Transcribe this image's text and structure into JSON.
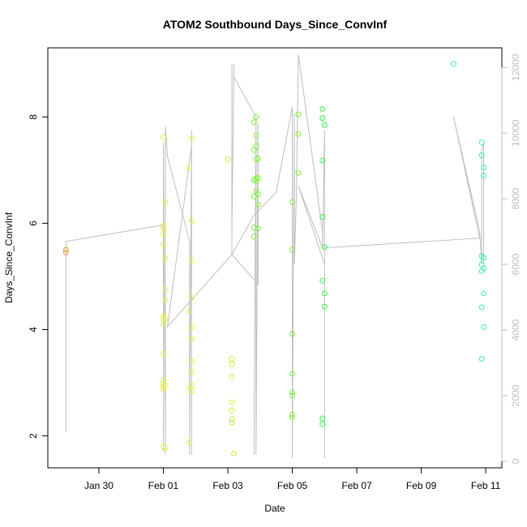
{
  "chart_data": {
    "type": "scatter",
    "title": "ATOM2 Southbound Days_Since_ConvInf",
    "xlabel": "Date",
    "ylabel": "Days_Since_ConvInf",
    "x_ticks": [
      "Jan 30",
      "Feb 01",
      "Feb 03",
      "Feb 05",
      "Feb 07",
      "Feb 09",
      "Feb 11"
    ],
    "y_ticks": [
      2,
      4,
      6,
      8
    ],
    "y_right_ticks": [
      0,
      2000,
      4000,
      6000,
      8000,
      10000,
      12000
    ],
    "xlim": [
      "2025-01-28 10:00",
      "2025-02-11 12:00"
    ],
    "ylim": [
      1.4,
      9.3
    ],
    "ylim_right": [
      -200,
      12600
    ],
    "grid": false,
    "colors": {
      "point_orange": "#e8a23c",
      "point_yellow": "#e2f23c",
      "point_yellowgreen": "#c2f23a",
      "point_green": "#7cf03a",
      "point_brightgreen": "#3ef044",
      "point_teal": "#3cf0a8",
      "line": "#bebebe",
      "right_axis": "#bebebe"
    },
    "series": [
      {
        "color_key": "point_orange",
        "points": [
          [
            "2025-01-28 23:30",
            5.45
          ],
          [
            "2025-01-28 23:30",
            5.5
          ]
        ]
      },
      {
        "color_key": "point_yellow",
        "points": [
          [
            "2025-02-01 00:00",
            7.62
          ],
          [
            "2025-02-01 00:00",
            5.95
          ],
          [
            "2025-02-01 00:00",
            5.9
          ],
          [
            "2025-02-01 00:00",
            5.8
          ],
          [
            "2025-02-01 00:00",
            5.6
          ],
          [
            "2025-02-01 00:00",
            4.25
          ],
          [
            "2025-02-01 00:00",
            4.2
          ],
          [
            "2025-02-01 00:00",
            4.1
          ],
          [
            "2025-02-01 00:00",
            3.55
          ],
          [
            "2025-02-01 00:00",
            3.05
          ],
          [
            "2025-02-01 00:00",
            2.98
          ],
          [
            "2025-02-01 00:00",
            2.92
          ],
          [
            "2025-02-01 00:00",
            2.88
          ],
          [
            "2025-02-01 00:00",
            1.8
          ],
          [
            "2025-02-01 01:30",
            6.4
          ],
          [
            "2025-02-01 01:30",
            5.35
          ],
          [
            "2025-02-01 01:30",
            4.75
          ],
          [
            "2025-02-01 01:30",
            4.55
          ],
          [
            "2025-02-01 01:30",
            4.2
          ],
          [
            "2025-02-01 01:30",
            2.95
          ],
          [
            "2025-02-01 01:30",
            1.78
          ],
          [
            "2025-02-01 19:30",
            7.05
          ],
          [
            "2025-02-01 19:30",
            4.35
          ],
          [
            "2025-02-01 19:30",
            2.9
          ],
          [
            "2025-02-01 19:30",
            1.88
          ],
          [
            "2025-02-01 21:00",
            7.6
          ],
          [
            "2025-02-01 21:00",
            6.05
          ],
          [
            "2025-02-01 21:00",
            5.3
          ],
          [
            "2025-02-01 21:00",
            4.6
          ],
          [
            "2025-02-01 21:00",
            4.05
          ],
          [
            "2025-02-01 21:00",
            3.82
          ],
          [
            "2025-02-01 21:00",
            3.4
          ],
          [
            "2025-02-01 21:00",
            3.2
          ],
          [
            "2025-02-01 21:00",
            2.95
          ],
          [
            "2025-02-01 21:00",
            2.85
          ]
        ]
      },
      {
        "color_key": "point_yellowgreen",
        "points": [
          [
            "2025-02-03 00:00",
            7.2
          ],
          [
            "2025-02-03 03:00",
            3.45
          ],
          [
            "2025-02-03 03:00",
            3.35
          ],
          [
            "2025-02-03 03:00",
            3.12
          ],
          [
            "2025-02-03 03:00",
            2.63
          ],
          [
            "2025-02-03 03:00",
            2.48
          ],
          [
            "2025-02-03 03:00",
            2.32
          ],
          [
            "2025-02-03 03:00",
            2.25
          ],
          [
            "2025-02-03 03:00",
            2.25
          ],
          [
            "2025-02-03 04:30",
            1.67
          ]
        ]
      },
      {
        "color_key": "point_green",
        "points": [
          [
            "2025-02-03 19:30",
            7.9
          ],
          [
            "2025-02-03 19:30",
            7.38
          ],
          [
            "2025-02-03 19:30",
            6.82
          ],
          [
            "2025-02-03 19:30",
            6.5
          ],
          [
            "2025-02-03 19:30",
            5.92
          ],
          [
            "2025-02-03 19:30",
            5.75
          ],
          [
            "2025-02-03 21:00",
            8.0
          ],
          [
            "2025-02-03 21:00",
            7.65
          ],
          [
            "2025-02-03 21:00",
            7.45
          ],
          [
            "2025-02-03 21:00",
            7.2
          ],
          [
            "2025-02-03 21:00",
            6.85
          ],
          [
            "2025-02-03 21:00",
            6.8
          ],
          [
            "2025-02-03 21:00",
            6.6
          ],
          [
            "2025-02-03 22:30",
            7.22
          ],
          [
            "2025-02-03 22:30",
            6.85
          ],
          [
            "2025-02-03 22:30",
            6.55
          ],
          [
            "2025-02-03 22:30",
            6.35
          ],
          [
            "2025-02-03 22:30",
            5.9
          ],
          [
            "2025-02-05 00:00",
            6.4
          ],
          [
            "2025-02-05 00:00",
            5.5
          ],
          [
            "2025-02-05 00:00",
            3.92
          ],
          [
            "2025-02-05 00:00",
            3.17
          ],
          [
            "2025-02-05 00:00",
            2.82
          ],
          [
            "2025-02-05 00:00",
            2.76
          ],
          [
            "2025-02-05 00:00",
            2.4
          ],
          [
            "2025-02-05 00:00",
            2.35
          ],
          [
            "2025-02-05 04:30",
            8.05
          ],
          [
            "2025-02-05 04:30",
            7.68
          ],
          [
            "2025-02-05 04:30",
            6.95
          ]
        ]
      },
      {
        "color_key": "point_brightgreen",
        "points": [
          [
            "2025-02-05 22:30",
            8.15
          ],
          [
            "2025-02-05 22:30",
            7.98
          ],
          [
            "2025-02-05 22:30",
            7.18
          ],
          [
            "2025-02-05 22:30",
            6.12
          ],
          [
            "2025-02-05 22:30",
            4.92
          ],
          [
            "2025-02-05 22:30",
            2.33
          ],
          [
            "2025-02-05 22:30",
            2.22
          ],
          [
            "2025-02-06 00:00",
            7.85
          ],
          [
            "2025-02-06 00:00",
            5.55
          ],
          [
            "2025-02-06 00:00",
            4.68
          ],
          [
            "2025-02-06 00:00",
            4.43
          ]
        ]
      },
      {
        "color_key": "point_teal",
        "points": [
          [
            "2025-02-10 00:00",
            9.0
          ],
          [
            "2025-02-10 21:00",
            7.52
          ],
          [
            "2025-02-10 21:00",
            7.28
          ],
          [
            "2025-02-10 21:00",
            5.38
          ],
          [
            "2025-02-10 21:00",
            5.22
          ],
          [
            "2025-02-10 21:00",
            5.1
          ],
          [
            "2025-02-10 21:00",
            4.42
          ],
          [
            "2025-02-10 21:00",
            3.45
          ],
          [
            "2025-02-10 22:30",
            7.05
          ],
          [
            "2025-02-10 22:30",
            6.9
          ],
          [
            "2025-02-10 22:30",
            5.35
          ],
          [
            "2025-02-10 22:30",
            5.15
          ],
          [
            "2025-02-10 22:30",
            4.68
          ],
          [
            "2025-02-10 22:30",
            4.05
          ]
        ]
      }
    ],
    "line_series": {
      "axis": "right",
      "points": [
        [
          "2025-01-28 23:30",
          900
        ],
        [
          "2025-01-28 23:30",
          6700
        ],
        [
          "2025-02-01 00:00",
          7200
        ],
        [
          "2025-02-01 00:00",
          300
        ],
        [
          "2025-02-01 00:00",
          9700
        ],
        [
          "2025-02-01 01:30",
          200
        ],
        [
          "2025-02-01 01:30",
          10200
        ],
        [
          "2025-02-01 03:00",
          9300
        ],
        [
          "2025-02-01 19:30",
          6700
        ],
        [
          "2025-02-01 19:30",
          200
        ],
        [
          "2025-02-01 21:00",
          10100
        ],
        [
          "2025-02-01 21:00",
          200
        ],
        [
          "2025-02-01 21:00",
          9600
        ],
        [
          "2025-02-01 03:00",
          4100
        ],
        [
          "2025-02-03 03:00",
          6300
        ],
        [
          "2025-02-03 03:00",
          12100
        ],
        [
          "2025-02-03 03:00",
          7000
        ],
        [
          "2025-02-03 04:30",
          12100
        ],
        [
          "2025-02-03 04:30",
          11700
        ],
        [
          "2025-02-03 21:00",
          10500
        ],
        [
          "2025-02-03 19:30",
          200
        ],
        [
          "2025-02-03 21:00",
          10400
        ],
        [
          "2025-02-03 21:00",
          200
        ],
        [
          "2025-02-03 22:30",
          10300
        ],
        [
          "2025-02-03 22:30",
          5400
        ],
        [
          "2025-02-03 03:00",
          6300
        ],
        [
          "2025-02-03 19:30",
          7500
        ],
        [
          "2025-02-04 12:00",
          8200
        ],
        [
          "2025-02-05 00:00",
          10800
        ],
        [
          "2025-02-05 00:00",
          100
        ],
        [
          "2025-02-05 01:30",
          10600
        ],
        [
          "2025-02-05 01:30",
          6000
        ],
        [
          "2025-02-05 03:00",
          8000
        ],
        [
          "2025-02-05 04:30",
          12400
        ],
        [
          "2025-02-05 22:30",
          7000
        ],
        [
          "2025-02-05 22:30",
          6500
        ],
        [
          "2025-02-06 00:00",
          10100
        ],
        [
          "2025-02-06 00:00",
          100
        ],
        [
          "2025-02-06 00:00",
          9800
        ],
        [
          "2025-02-06 00:00",
          6000
        ],
        [
          "2025-02-05 04:30",
          8400
        ],
        [
          "2025-02-05 22:30",
          6500
        ],
        [
          "2025-02-10 19:30",
          6800
        ],
        [
          "2025-02-10 00:00",
          10500
        ],
        [
          "2025-02-10 19:30",
          7000
        ],
        [
          "2025-02-10 21:00",
          6000
        ],
        [
          "2025-02-10 21:00",
          9500
        ],
        [
          "2025-02-10 22:30",
          9700
        ],
        [
          "2025-02-10 22:30",
          6000
        ]
      ]
    }
  }
}
